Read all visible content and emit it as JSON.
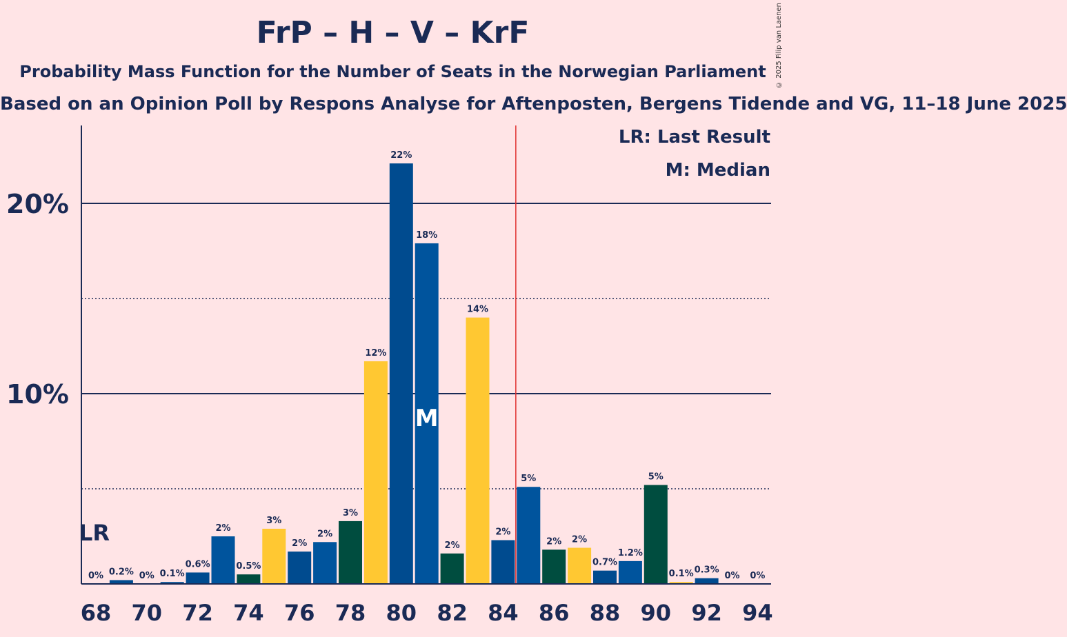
{
  "title": "FrP – H – V – KrF",
  "subtitle": "Probability Mass Function for the Number of Seats in the Norwegian Parliament",
  "subtitle2": "Based on an Opinion Poll by Respons Analyse for Aftenposten, Bergens Tidende and VG, 11–18 June 2025",
  "copyright": "© 2025 Filip van Laenen",
  "legend": {
    "last_result": "LR: Last Result",
    "median": "M: Median"
  },
  "markers": {
    "last_result_label": "LR",
    "median_label": "M"
  },
  "colors": {
    "background": "#ffe4e6",
    "frp": "#004b8f",
    "h": "#00549d",
    "v": "#004d3f",
    "krf": "#ffc832",
    "axis": "#1a2a55",
    "majority_line": "#e03030"
  },
  "chart_data": {
    "type": "bar",
    "x": [
      68,
      69,
      70,
      71,
      72,
      73,
      74,
      75,
      76,
      77,
      78,
      79,
      80,
      81,
      82,
      83,
      84,
      85,
      86,
      87,
      88,
      89,
      90,
      91,
      92,
      93,
      94
    ],
    "values": [
      0,
      0.2,
      0,
      0.1,
      0.6,
      2.5,
      0.5,
      2.9,
      1.7,
      2.2,
      3.3,
      11.7,
      22.1,
      17.9,
      1.6,
      14,
      2.3,
      5.1,
      1.8,
      1.9,
      0.7,
      1.2,
      5.2,
      0.1,
      0.3,
      0,
      0
    ],
    "labels": [
      "0%",
      "0.2%",
      "0%",
      "0.1%",
      "0.6%",
      "2%",
      "0.5%",
      "3%",
      "2%",
      "2%",
      "3%",
      "12%",
      "22%",
      "18%",
      "2%",
      "14%",
      "2%",
      "5%",
      "2%",
      "2%",
      "0.7%",
      "1.2%",
      "5%",
      "0.1%",
      "0.3%",
      "0%",
      "0%"
    ],
    "bar_colors": [
      "#004b8f",
      "#004b8f",
      "#004b8f",
      "#004b8f",
      "#004b8f",
      "#00549d",
      "#004d3f",
      "#ffc832",
      "#004b8f",
      "#00549d",
      "#004d3f",
      "#ffc832",
      "#004b8f",
      "#00549d",
      "#004d3f",
      "#ffc832",
      "#004b8f",
      "#00549d",
      "#004d3f",
      "#ffc832",
      "#004b8f",
      "#00549d",
      "#004d3f",
      "#ffc832",
      "#004b8f",
      "#00549d",
      "#004d3f"
    ],
    "x_ticks": [
      68,
      70,
      72,
      74,
      76,
      78,
      80,
      82,
      84,
      86,
      88,
      90,
      92,
      94
    ],
    "y_ticks": [
      {
        "value": 10,
        "label": "10%"
      },
      {
        "value": 20,
        "label": "20%"
      }
    ],
    "y_minor_ticks": [
      5,
      15
    ],
    "ylim": [
      0,
      24
    ],
    "last_result": 68,
    "median": 81,
    "majority_threshold": 84.5,
    "grid": true,
    "legend_position": "top-right"
  }
}
